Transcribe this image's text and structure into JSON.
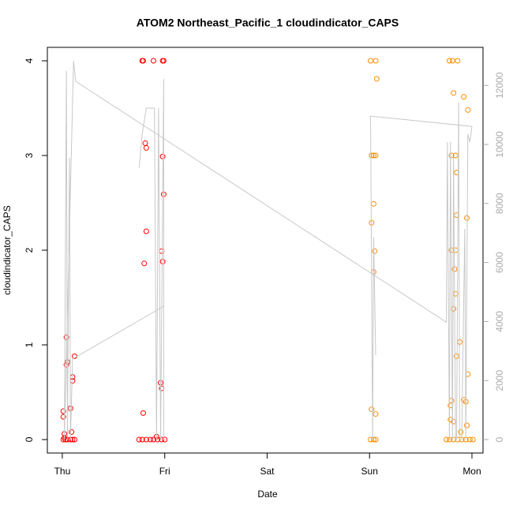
{
  "chart_data": {
    "type": "scatter",
    "title": "ATOM2 Northeast_Pacific_1 cloudindicator_CAPS",
    "x_label": "Date",
    "y_label": "cloudindicator_CAPS",
    "xlim": [
      -0.146,
      4.108
    ],
    "xticks": [
      {
        "value": 0,
        "label": "Thu"
      },
      {
        "value": 1,
        "label": "Fri"
      },
      {
        "value": 2,
        "label": "Sat"
      },
      {
        "value": 3,
        "label": "Sun"
      },
      {
        "value": 4,
        "label": "Mon"
      }
    ],
    "ylim": [
      -0.142,
      4.142
    ],
    "yticks": [
      0,
      1,
      2,
      3,
      4
    ],
    "y2lim": [
      -455,
      13290
    ],
    "y2ticks": [
      0,
      2000,
      4000,
      6000,
      8000,
      10000,
      12000
    ],
    "series": [
      {
        "color": "#ff0000",
        "x": [
          0.01,
          0.03,
          0.05,
          0.08,
          0.1,
          0.12,
          0.02,
          0.01,
          0.01,
          0.04,
          0.05,
          0.04,
          0.08,
          0.1,
          0.1,
          0.12,
          0.09,
          0.02,
          0.75,
          0.78,
          0.82,
          0.86,
          0.89,
          0.93,
          0.97,
          1.0,
          0.78,
          0.79,
          0.89,
          0.98,
          0.99,
          0.81,
          0.82,
          0.82,
          0.8,
          0.98,
          0.99,
          0.97,
          0.98,
          0.96,
          0.97,
          0.79,
          0.92
        ],
        "values": [
          0,
          0,
          0,
          0,
          0,
          0,
          0.06,
          0.24,
          0.3,
          1.08,
          0.82,
          0.79,
          0.33,
          0.66,
          0.62,
          0.88,
          0.08,
          0.02,
          0,
          0,
          0,
          0,
          0,
          0,
          0,
          0,
          4,
          4,
          4,
          4,
          4,
          3.13,
          3.08,
          2.2,
          1.86,
          2.99,
          2.59,
          1.99,
          1.88,
          0.6,
          0.54,
          0.28,
          0.03
        ]
      },
      {
        "color": "#ff8c00",
        "x": [
          3.01,
          3.04,
          3.06,
          3.01,
          3.06,
          3.07,
          3.02,
          3.04,
          3.06,
          3.04,
          3.02,
          3.05,
          3.04,
          3.02,
          3.06,
          3.75,
          3.78,
          3.82,
          3.86,
          3.9,
          3.94,
          3.98,
          4.01,
          3.78,
          3.81,
          3.86,
          3.82,
          3.92,
          3.96,
          3.8,
          3.84,
          3.85,
          3.85,
          3.95,
          3.8,
          3.84,
          3.83,
          3.84,
          3.82,
          3.88,
          3.85,
          3.96,
          3.8,
          3.79,
          3.92,
          3.94,
          3.82,
          3.79,
          3.89,
          3.95
        ],
        "values": [
          0,
          0,
          0,
          4,
          4,
          3.81,
          3,
          3,
          3,
          2.49,
          2.29,
          1.99,
          1.77,
          0.32,
          0.27,
          0,
          0,
          0,
          0,
          0,
          0,
          0,
          0,
          4,
          4,
          4,
          3.66,
          3.62,
          3.48,
          3,
          3,
          2.82,
          2.37,
          2.34,
          2,
          2,
          1.8,
          1.54,
          1.38,
          1.03,
          0.88,
          0.69,
          0.41,
          0.36,
          0.42,
          0.4,
          0.19,
          0.21,
          0.08,
          0.15
        ]
      },
      {
        "color": "#c8c8c8",
        "axis": "y2",
        "mode": "line",
        "x": [
          0.75,
          0.78,
          0.82,
          0.9,
          0.92,
          0.94,
          0.96,
          0.99,
          0.99,
          0.99,
          0.1,
          0.08,
          0.07,
          0.05,
          0.04,
          0.02,
          0.11,
          0.13,
          3.75,
          3.76,
          3.78,
          3.79,
          3.81,
          3.82,
          3.84,
          3.85,
          3.87,
          3.88,
          3.9,
          3.93,
          3.94,
          3.96,
          3.98,
          4.0,
          3.01,
          3.03,
          3.04,
          3.06
        ],
        "values": [
          9200,
          10350,
          11230,
          11230,
          0,
          11230,
          0,
          12220,
          0,
          4520,
          2730,
          0,
          9550,
          0,
          12490,
          0,
          12830,
          12140,
          3980,
          10080,
          0,
          10080,
          0,
          9550,
          0,
          0,
          11420,
          0,
          0,
          7140,
          0,
          10350,
          10080,
          10610,
          10960,
          0,
          6870,
          2860
        ]
      }
    ]
  }
}
